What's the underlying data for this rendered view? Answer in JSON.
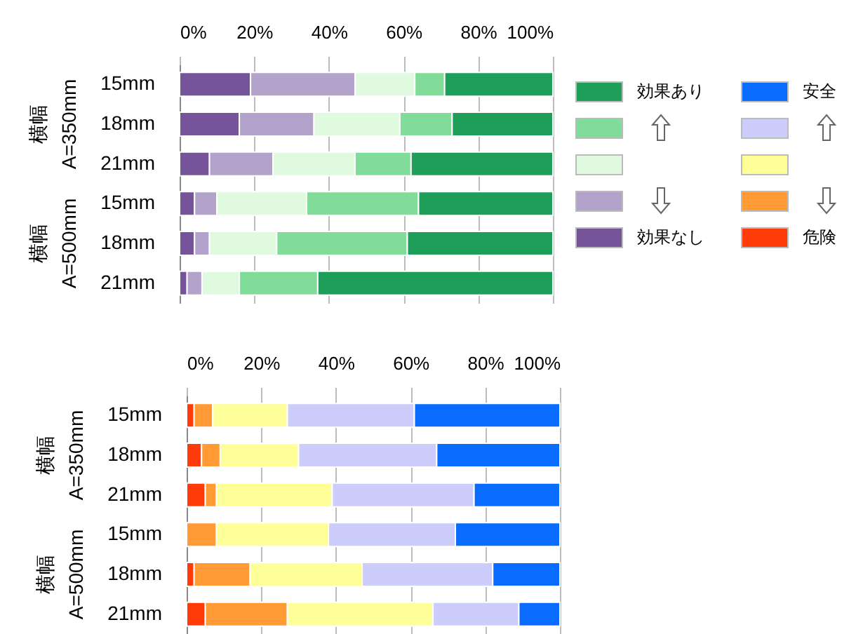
{
  "chart_data": [
    {
      "type": "bar",
      "orientation": "horizontal",
      "stacked": true,
      "categories": [
        "15mm",
        "18mm",
        "21mm",
        "15mm",
        "18mm",
        "21mm"
      ],
      "annotations": [
        "横幅 A=350mm",
        "横幅 A=500mm"
      ],
      "xlim": [
        0,
        100
      ],
      "xticks": [
        {
          "value": 0,
          "label": "0%"
        },
        {
          "value": 20,
          "label": "20%"
        },
        {
          "value": 40,
          "label": "40%"
        },
        {
          "value": 60,
          "label": "60%"
        },
        {
          "value": 80,
          "label": "80%"
        },
        {
          "value": 100,
          "label": "100%"
        }
      ],
      "grid": "x",
      "legend": "right",
      "series": [
        {
          "name": "効果なし",
          "color": "#765499",
          "values": [
            19,
            16,
            8,
            4,
            4,
            2
          ]
        },
        {
          "color": "#b3a2c9",
          "values": [
            28,
            20,
            17,
            6,
            4,
            4
          ]
        },
        {
          "color": "#e0fadf",
          "values": [
            16,
            23,
            22,
            24,
            18,
            10
          ]
        },
        {
          "color": "#80dc98",
          "values": [
            8,
            14,
            15,
            30,
            35,
            21
          ]
        },
        {
          "name": "効果あり",
          "color": "#1f9e5a",
          "values": [
            29,
            27,
            38,
            36,
            39,
            63
          ]
        }
      ]
    },
    {
      "type": "bar",
      "orientation": "horizontal",
      "stacked": true,
      "categories": [
        "15mm",
        "18mm",
        "21mm",
        "15mm",
        "18mm",
        "21mm"
      ],
      "annotations": [
        "横幅 A=350mm",
        "横幅 A=500mm"
      ],
      "xlim": [
        0,
        100
      ],
      "xticks": [
        {
          "value": 0,
          "label": "0%"
        },
        {
          "value": 20,
          "label": "20%"
        },
        {
          "value": 40,
          "label": "40%"
        },
        {
          "value": 60,
          "label": "60%"
        },
        {
          "value": 80,
          "label": "80%"
        },
        {
          "value": 100,
          "label": "100%"
        }
      ],
      "grid": "x",
      "legend": "right",
      "series": [
        {
          "name": "危険",
          "color": "#ff3b0a",
          "values": [
            2,
            4,
            5,
            0,
            2,
            5
          ]
        },
        {
          "color": "#ff9a35",
          "values": [
            5,
            5,
            3,
            8,
            15,
            22
          ]
        },
        {
          "color": "#ffff99",
          "values": [
            20,
            21,
            31,
            30,
            30,
            39
          ]
        },
        {
          "color": "#cdcdfb",
          "values": [
            34,
            37,
            38,
            34,
            35,
            23
          ]
        },
        {
          "name": "安全",
          "color": "#0a6cff",
          "values": [
            39,
            33,
            23,
            28,
            18,
            11
          ]
        }
      ]
    }
  ]
}
